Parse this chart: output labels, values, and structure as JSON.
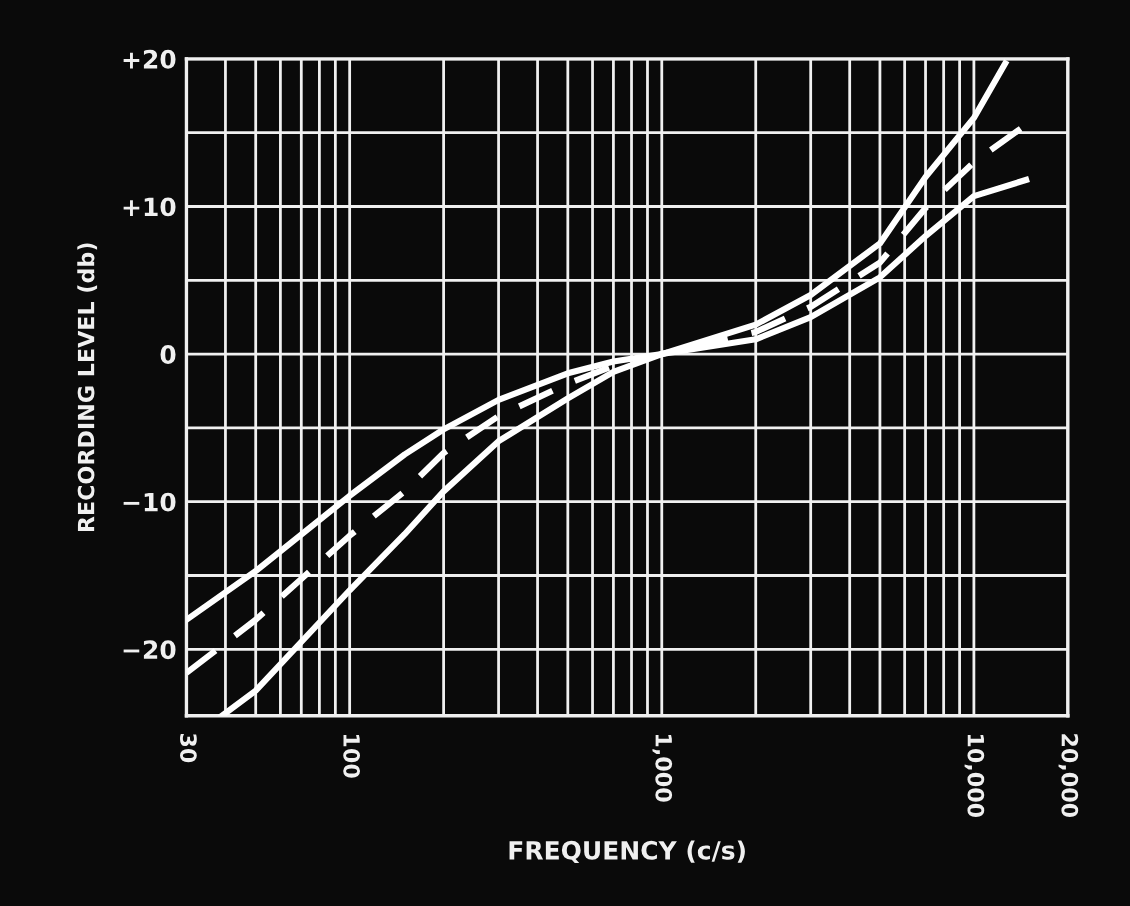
{
  "chart_data": {
    "type": "line",
    "xlabel": "FREQUENCY (c/s)",
    "ylabel": "RECORDING LEVEL (db)",
    "log": "x",
    "grid": true,
    "marker": "none",
    "xlim": [
      30,
      20000
    ],
    "ylim": [
      -24.5,
      20
    ],
    "xticks": [
      {
        "value": 30,
        "label": "30"
      },
      {
        "value": 40,
        "label": null
      },
      {
        "value": 50,
        "label": null
      },
      {
        "value": 60,
        "label": null
      },
      {
        "value": 70,
        "label": null
      },
      {
        "value": 80,
        "label": null
      },
      {
        "value": 90,
        "label": null
      },
      {
        "value": 100,
        "label": "100"
      },
      {
        "value": 200,
        "label": null
      },
      {
        "value": 300,
        "label": null
      },
      {
        "value": 400,
        "label": null
      },
      {
        "value": 500,
        "label": null
      },
      {
        "value": 600,
        "label": null
      },
      {
        "value": 700,
        "label": null
      },
      {
        "value": 800,
        "label": null
      },
      {
        "value": 900,
        "label": null
      },
      {
        "value": 1000,
        "label": "1,000"
      },
      {
        "value": 2000,
        "label": null
      },
      {
        "value": 3000,
        "label": null
      },
      {
        "value": 4000,
        "label": null
      },
      {
        "value": 5000,
        "label": null
      },
      {
        "value": 6000,
        "label": null
      },
      {
        "value": 7000,
        "label": null
      },
      {
        "value": 8000,
        "label": null
      },
      {
        "value": 9000,
        "label": null
      },
      {
        "value": 10000,
        "label": "10,000"
      },
      {
        "value": 20000,
        "label": "20,000"
      }
    ],
    "yticks": [
      {
        "value": 20,
        "label": "+20"
      },
      {
        "value": 15,
        "label": null
      },
      {
        "value": 10,
        "label": "+10"
      },
      {
        "value": 5,
        "label": null
      },
      0,
      {
        "value": -5,
        "label": null
      },
      {
        "value": -10,
        "label": "−10"
      },
      {
        "value": -15,
        "label": null
      },
      {
        "value": -20,
        "label": "−20"
      }
    ],
    "series": [
      {
        "color": "#ffffff",
        "line_style": "solid",
        "x": [
          30,
          50,
          100,
          150,
          200,
          300,
          500,
          700,
          1000,
          2000,
          3000,
          5000,
          7000,
          10000,
          12600
        ],
        "values": [
          -18,
          -14.7,
          -9.6,
          -6.8,
          -5.1,
          -3.1,
          -1.3,
          -0.5,
          0,
          2,
          4,
          7.5,
          12,
          16,
          19.7
        ]
      },
      {
        "color": "#ffffff",
        "line_style": "dashed",
        "x": [
          30,
          50,
          100,
          150,
          200,
          300,
          500,
          700,
          1000,
          2000,
          3000,
          5000,
          7000,
          10000,
          14400
        ],
        "values": [
          -21.6,
          -18,
          -12.3,
          -9.3,
          -6.7,
          -4.2,
          -2,
          -0.8,
          0,
          1.5,
          3.2,
          6.2,
          9.9,
          13,
          15.4
        ]
      },
      {
        "color": "#ffffff",
        "line_style": "solid",
        "x": [
          39,
          50,
          100,
          150,
          200,
          300,
          500,
          700,
          1000,
          2000,
          3000,
          5000,
          7000,
          10000,
          14700
        ],
        "values": [
          -24.5,
          -22.8,
          -16,
          -12.2,
          -9.3,
          -5.9,
          -3,
          -1.2,
          0,
          1,
          2.5,
          5.2,
          8,
          10.7,
          11.8
        ]
      }
    ]
  }
}
